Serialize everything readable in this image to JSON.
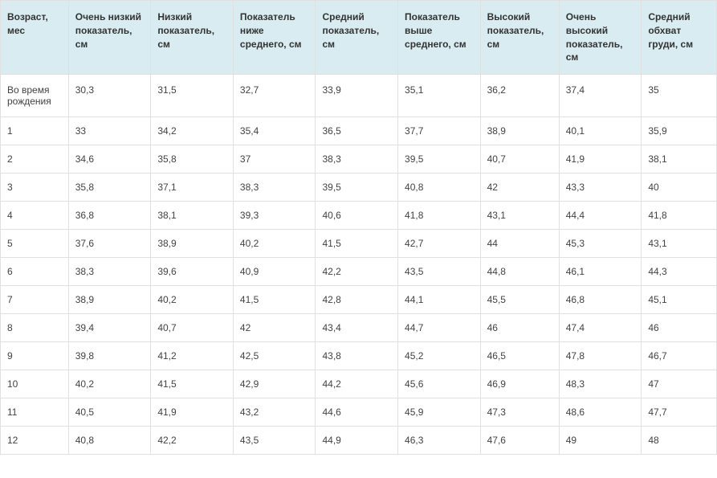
{
  "table": {
    "type": "table",
    "header_bg": "#d9ecf1",
    "cell_bg": "#ffffff",
    "border_color": "#e0e0e0",
    "text_color": "#424242",
    "header_text_color": "#333333",
    "font_size": 12,
    "columns": [
      "Возраст, мес",
      "Очень низкий показатель, см",
      "Низкий показатель, см",
      "Показатель ниже среднего, см",
      "Средний показатель, см",
      "Показатель выше среднего, см",
      "Высокий показатель, см",
      "Очень высокий показатель, см",
      "Средний обхват груди, см"
    ],
    "column_widths_pct": [
      9.5,
      11.5,
      11.5,
      11.5,
      11.5,
      11.5,
      11,
      11.5,
      10.5
    ],
    "rows": [
      [
        "Во время рождения",
        "30,3",
        "31,5",
        "32,7",
        "33,9",
        "35,1",
        "36,2",
        "37,4",
        "35"
      ],
      [
        "1",
        "33",
        "34,2",
        "35,4",
        "36,5",
        "37,7",
        "38,9",
        "40,1",
        "35,9"
      ],
      [
        "2",
        "34,6",
        "35,8",
        "37",
        "38,3",
        "39,5",
        "40,7",
        "41,9",
        "38,1"
      ],
      [
        "3",
        "35,8",
        "37,1",
        "38,3",
        "39,5",
        "40,8",
        "42",
        "43,3",
        "40"
      ],
      [
        "4",
        "36,8",
        "38,1",
        "39,3",
        "40,6",
        "41,8",
        "43,1",
        "44,4",
        "41,8"
      ],
      [
        "5",
        "37,6",
        "38,9",
        "40,2",
        "41,5",
        "42,7",
        "44",
        "45,3",
        "43,1"
      ],
      [
        "6",
        "38,3",
        "39,6",
        "40,9",
        "42,2",
        "43,5",
        "44,8",
        "46,1",
        "44,3"
      ],
      [
        "7",
        "38,9",
        "40,2",
        "41,5",
        "42,8",
        "44,1",
        "45,5",
        "46,8",
        "45,1"
      ],
      [
        "8",
        "39,4",
        "40,7",
        "42",
        "43,4",
        "44,7",
        "46",
        "47,4",
        "46"
      ],
      [
        "9",
        "39,8",
        "41,2",
        "42,5",
        "43,8",
        "45,2",
        "46,5",
        "47,8",
        "46,7"
      ],
      [
        "10",
        "40,2",
        "41,5",
        "42,9",
        "44,2",
        "45,6",
        "46,9",
        "48,3",
        "47"
      ],
      [
        "11",
        "40,5",
        "41,9",
        "43,2",
        "44,6",
        "45,9",
        "47,3",
        "48,6",
        "47,7"
      ],
      [
        "12",
        "40,8",
        "42,2",
        "43,5",
        "44,9",
        "46,3",
        "47,6",
        "49",
        "48"
      ]
    ]
  }
}
